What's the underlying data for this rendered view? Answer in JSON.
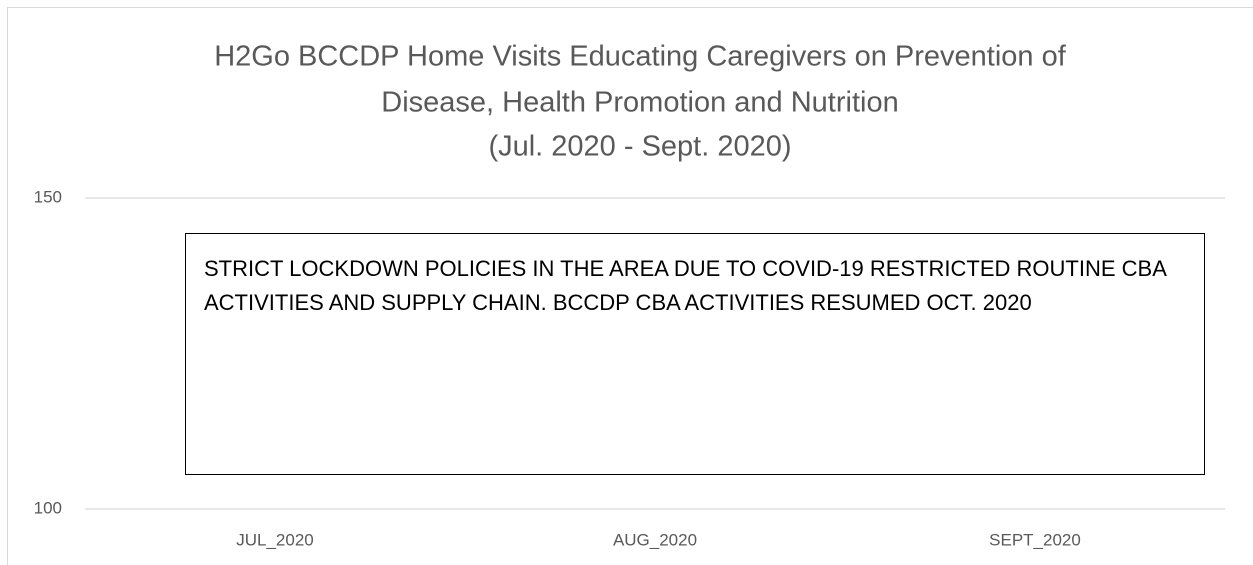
{
  "chart_data": {
    "type": "bar",
    "title": [
      "H2Go BCCDP Home Visits Educating Caregivers on Prevention of",
      "Disease, Health Promotion and Nutrition",
      "(Jul. 2020 - Sept. 2020)"
    ],
    "annotation": "STRICT LOCKDOWN POLICIES IN THE AREA DUE TO COVID-19 RESTRICTED ROUTINE CBA ACTIVITIES AND SUPPLY CHAIN. BCCDP CBA ACTIVITIES RESUMED OCT. 2020",
    "categories": [
      "JUL_2020",
      "AUG_2020",
      "SEPT_2020"
    ],
    "values": [
      100,
      100,
      100
    ],
    "color": "#a9d18e",
    "ylim": [
      100,
      150
    ],
    "yticks": [
      100,
      150
    ],
    "grid": true
  }
}
